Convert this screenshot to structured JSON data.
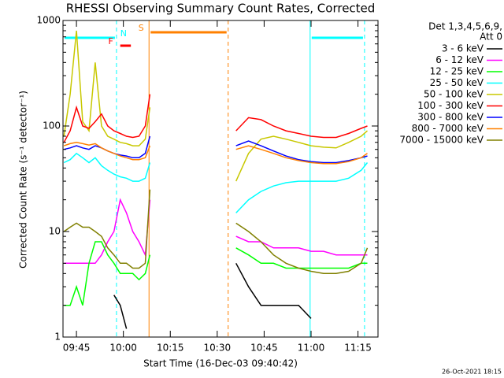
{
  "chart_data": {
    "type": "line",
    "title": "RHESSI Observing Summary Count Rates, Corrected",
    "x_label": "Start Time (16-Dec-03 09:40:42)",
    "y_label": "Corrected Count Rate (s⁻¹ detector⁻¹)",
    "footer": "26-Oct-2021 18:15",
    "legend_title": [
      "Det 1,3,4,5,6,9,",
      "Att 0"
    ],
    "legend": "right",
    "log_y": true,
    "xlim": [
      580.7,
      681.4
    ],
    "ylim": [
      1,
      1000
    ],
    "xticks": [
      {
        "value": 585,
        "label": "09:45"
      },
      {
        "value": 600,
        "label": "10:00"
      },
      {
        "value": 615,
        "label": "10:15"
      },
      {
        "value": 630,
        "label": "10:30"
      },
      {
        "value": 645,
        "label": "10:45"
      },
      {
        "value": 660,
        "label": "11:00"
      },
      {
        "value": 675,
        "label": "11:15"
      }
    ],
    "yticks": [
      1,
      10,
      100,
      1000
    ],
    "yminor_ticks": [
      2,
      3,
      4,
      5,
      6,
      7,
      8,
      9,
      20,
      30,
      40,
      50,
      60,
      70,
      80,
      90,
      200,
      300,
      400,
      500,
      600,
      700,
      800,
      900
    ],
    "intervals": [
      {
        "label": "N",
        "color": "#00ffff",
        "start": 580.7,
        "end": 597.8
      },
      {
        "color": "#00ffff",
        "start": 659.7,
        "end": 677.1
      },
      {
        "label": "S",
        "color": "#ff8000",
        "start": 608.2,
        "end": 633.5
      },
      {
        "label": "F",
        "color": "#ff0000",
        "start": 598.5,
        "end": 602.9
      }
    ],
    "x": [
      581,
      583,
      585,
      587,
      589,
      591,
      593,
      595,
      597,
      599,
      601,
      603,
      605,
      607,
      608.5,
      620,
      636,
      640,
      644,
      648,
      652,
      656,
      660,
      664,
      668,
      672,
      676,
      678
    ],
    "series": [
      {
        "name": "3 - 6 keV",
        "color": "#000000",
        "values": [
          null,
          null,
          null,
          null,
          null,
          null,
          null,
          null,
          2.5,
          2,
          1.2,
          null,
          null,
          null,
          null,
          null,
          5,
          3,
          2,
          2,
          2,
          2,
          1.5,
          null,
          null,
          null,
          null,
          null
        ]
      },
      {
        "name": "6 - 12 keV",
        "color": "#ff00ff",
        "values": [
          5,
          5,
          5,
          5,
          5,
          5,
          6,
          8,
          10,
          20,
          15,
          10,
          8,
          6,
          20,
          null,
          9,
          8,
          8,
          7,
          7,
          7,
          6.5,
          6.5,
          6,
          6,
          6,
          6
        ]
      },
      {
        "name": "12 - 25 keV",
        "color": "#00ff00",
        "values": [
          2,
          2,
          3,
          2,
          5,
          8,
          8,
          6,
          5,
          4,
          4,
          4,
          3.5,
          4,
          6,
          null,
          7,
          6,
          5,
          5,
          4.5,
          4.5,
          4.5,
          4.5,
          4.5,
          4.5,
          5,
          5
        ]
      },
      {
        "name": "25 - 50 keV",
        "color": "#00ffff",
        "values": [
          45,
          48,
          55,
          50,
          45,
          50,
          42,
          38,
          35,
          33,
          32,
          30,
          30,
          32,
          45,
          null,
          15,
          20,
          24,
          27,
          29,
          30,
          30,
          30,
          30,
          32,
          38,
          45
        ]
      },
      {
        "name": "50 - 100 keV",
        "color": "#c8c800",
        "values": [
          80,
          200,
          800,
          110,
          90,
          400,
          100,
          80,
          75,
          70,
          68,
          65,
          65,
          75,
          150,
          null,
          30,
          55,
          75,
          80,
          75,
          70,
          65,
          63,
          62,
          70,
          80,
          90
        ]
      },
      {
        "name": "100 - 300 keV",
        "color": "#ff0000",
        "values": [
          70,
          90,
          150,
          100,
          95,
          110,
          130,
          100,
          90,
          85,
          80,
          78,
          80,
          100,
          200,
          null,
          90,
          120,
          115,
          100,
          90,
          85,
          80,
          78,
          78,
          85,
          95,
          100
        ]
      },
      {
        "name": "300 - 800 keV",
        "color": "#0000ff",
        "values": [
          60,
          62,
          65,
          62,
          60,
          65,
          62,
          58,
          55,
          53,
          52,
          50,
          50,
          55,
          80,
          null,
          65,
          72,
          65,
          58,
          52,
          48,
          46,
          45,
          45,
          47,
          50,
          52
        ]
      },
      {
        "name": "800 - 7000 keV",
        "color": "#ff8000",
        "values": [
          65,
          68,
          70,
          68,
          66,
          68,
          62,
          58,
          55,
          52,
          50,
          48,
          48,
          50,
          65,
          null,
          60,
          65,
          60,
          55,
          50,
          47,
          45,
          44,
          44,
          46,
          50,
          55
        ]
      },
      {
        "name": "7000 - 15000 keV",
        "color": "#808000",
        "values": [
          10,
          11,
          12,
          11,
          11,
          10,
          9,
          7,
          6,
          5,
          5,
          4.5,
          4.5,
          5,
          25,
          null,
          12,
          10,
          8,
          6,
          5,
          4.5,
          4.2,
          4,
          4,
          4.2,
          5,
          7
        ]
      }
    ]
  }
}
